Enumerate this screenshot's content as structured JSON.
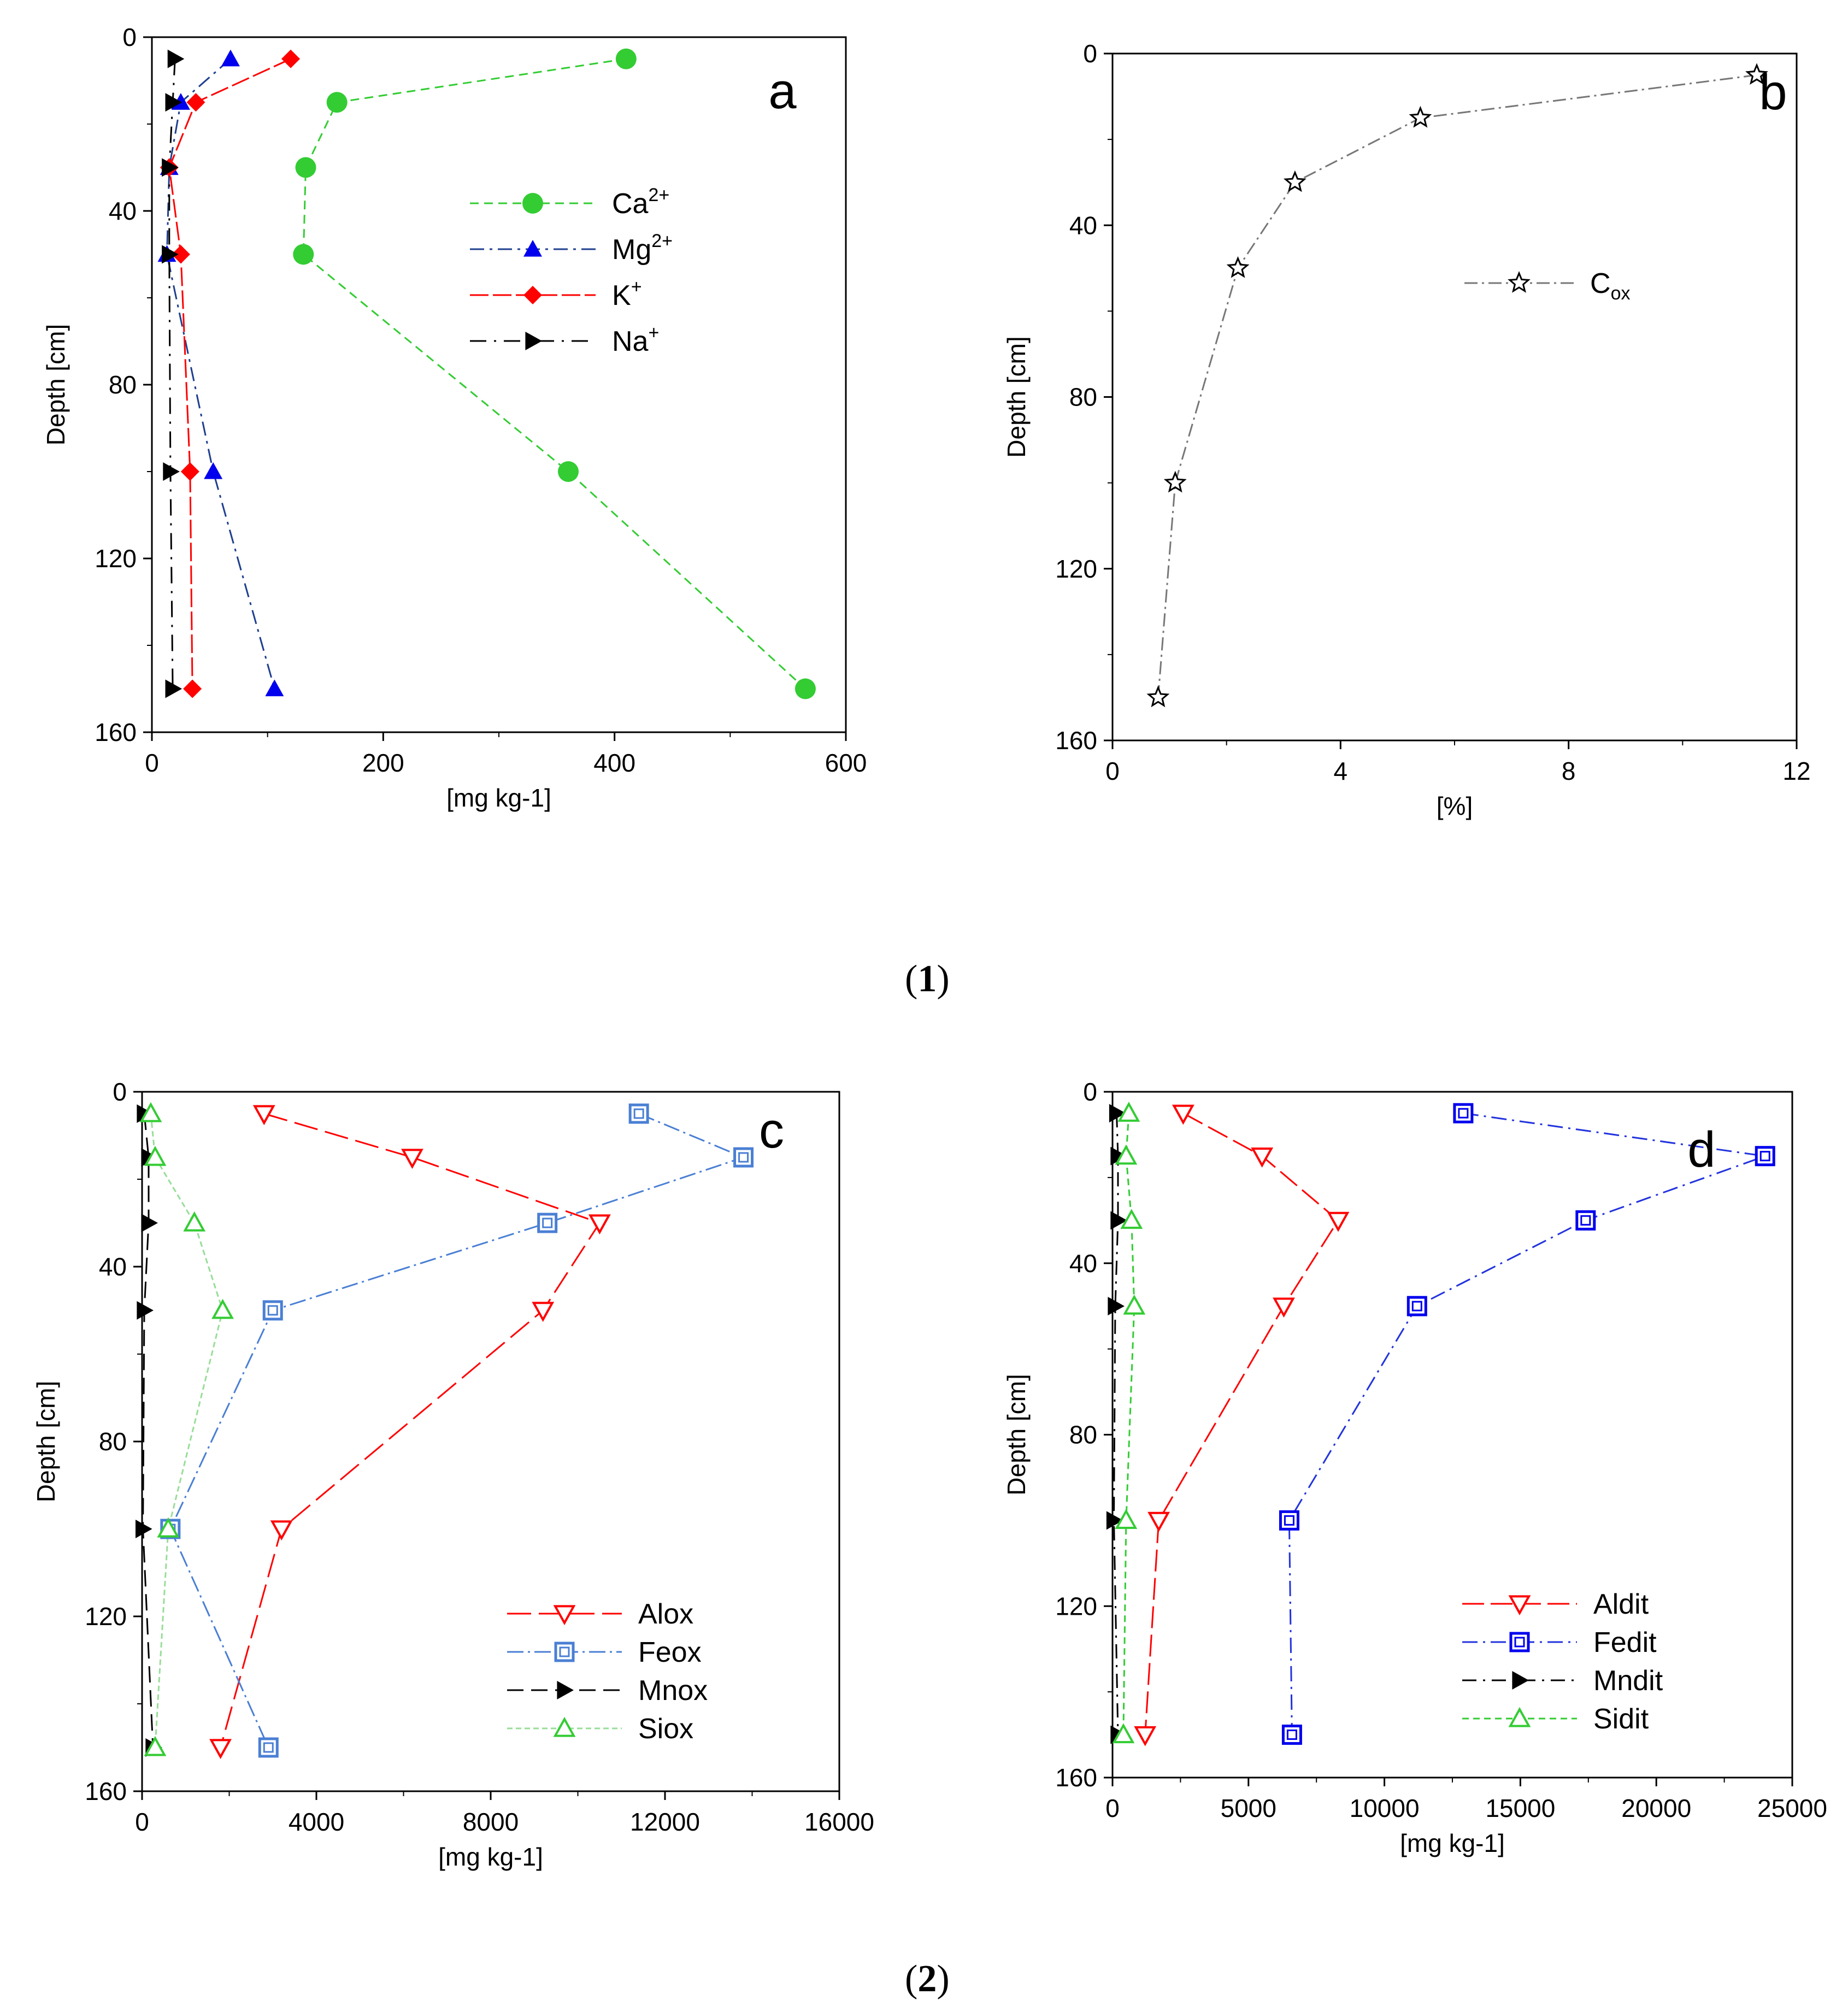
{
  "figure_labels": {
    "one": "1",
    "two": "2"
  },
  "chart_data": [
    {
      "type": "line",
      "panel": "a",
      "xlabel": "[mg kg-1]",
      "ylabel": "Depth [cm]",
      "xlim": [
        0,
        600
      ],
      "ylim": [
        0,
        160
      ],
      "y_inverted": true,
      "xticks": [
        0,
        200,
        400,
        600
      ],
      "yticks": [
        0,
        40,
        80,
        120,
        160
      ],
      "legend_position": "right-center",
      "series": [
        {
          "name": "Ca",
          "sup": "2+",
          "color": "#33cc33",
          "marker": "circle",
          "dash": "16,10",
          "x": [
            410,
            160,
            133,
            131,
            360,
            565
          ],
          "y": [
            5,
            15,
            30,
            50,
            100,
            150
          ]
        },
        {
          "name": "Mg",
          "sup": "2+",
          "color": "#0000ee",
          "line": "#1f3f8f",
          "marker": "triangle-up",
          "dash": "26,10,5,10",
          "x": [
            68,
            25,
            15,
            13,
            53,
            106
          ],
          "y": [
            5,
            15,
            30,
            50,
            100,
            150
          ]
        },
        {
          "name": "K",
          "sup": "+",
          "color": "#ff0000",
          "marker": "diamond",
          "dash": "34,8",
          "x": [
            120,
            38,
            15,
            25,
            33,
            35
          ],
          "y": [
            5,
            15,
            30,
            50,
            100,
            150
          ]
        },
        {
          "name": "Na",
          "sup": "+",
          "color": "#000000",
          "marker": "triangle-right",
          "dash": "30,14,4,14",
          "x": [
            20,
            18,
            15,
            15,
            16,
            18
          ],
          "y": [
            5,
            15,
            30,
            50,
            100,
            150
          ]
        }
      ]
    },
    {
      "type": "line",
      "panel": "b",
      "xlabel": "[%]",
      "ylabel": "Depth [cm]",
      "xlim": [
        0,
        12
      ],
      "ylim": [
        0,
        160
      ],
      "y_inverted": true,
      "xticks": [
        0,
        4,
        8,
        12
      ],
      "yticks": [
        0,
        40,
        80,
        120,
        160
      ],
      "legend_position": "right-center",
      "series": [
        {
          "name": "C",
          "sub": "ox",
          "color": "#000000",
          "line": "#777777",
          "marker": "star",
          "dash": "24,8,4,8",
          "x": [
            11.3,
            5.4,
            3.2,
            2.2,
            1.1,
            0.8
          ],
          "y": [
            5,
            15,
            30,
            50,
            100,
            150
          ]
        }
      ]
    },
    {
      "type": "line",
      "panel": "c",
      "xlabel": "[mg kg-1]",
      "ylabel": "Depth [cm]",
      "xlim": [
        0,
        16000
      ],
      "ylim": [
        0,
        160
      ],
      "y_inverted": true,
      "xticks": [
        0,
        4000,
        8000,
        12000,
        16000
      ],
      "yticks": [
        0,
        40,
        80,
        120,
        160
      ],
      "legend_position": "bottom-right",
      "series": [
        {
          "name": "Alox",
          "color": "#ff0000",
          "marker": "triangle-down-open",
          "dash": "44,14",
          "x": [
            2800,
            6200,
            10500,
            9200,
            3200,
            1800
          ],
          "y": [
            5,
            15,
            30,
            50,
            100,
            150
          ]
        },
        {
          "name": "Feox",
          "color": "#4a7fd4",
          "marker": "square-open",
          "dash": "30,8,4,8",
          "x": [
            11400,
            13800,
            9300,
            3000,
            650,
            2900
          ],
          "y": [
            5,
            15,
            30,
            50,
            100,
            150
          ]
        },
        {
          "name": "Mnox",
          "color": "#000000",
          "marker": "triangle-right",
          "dash": "30,14",
          "x": [
            50,
            150,
            150,
            50,
            20,
            250
          ],
          "y": [
            5,
            15,
            30,
            50,
            100,
            150
          ]
        },
        {
          "name": "Siox",
          "color": "#33cc33",
          "line": "#99dd99",
          "marker": "triangle-up-open",
          "dash": "10,6",
          "x": [
            200,
            300,
            1200,
            1850,
            600,
            300
          ],
          "y": [
            5,
            15,
            30,
            50,
            100,
            150
          ]
        }
      ]
    },
    {
      "type": "line",
      "panel": "d",
      "xlabel": "[mg kg-1]",
      "ylabel": "Depth [cm]",
      "xlim": [
        0,
        25000
      ],
      "ylim": [
        0,
        160
      ],
      "y_inverted": true,
      "xticks": [
        0,
        5000,
        10000,
        15000,
        20000,
        25000
      ],
      "yticks": [
        0,
        40,
        80,
        120,
        160
      ],
      "legend_position": "bottom-right",
      "series": [
        {
          "name": "Aldit",
          "color": "#ff0000",
          "marker": "triangle-down-open",
          "dash": "40,12",
          "x": [
            2600,
            5500,
            8300,
            6300,
            1700,
            1200
          ],
          "y": [
            5,
            15,
            30,
            50,
            100,
            150
          ]
        },
        {
          "name": "Fedit",
          "color": "#0000ee",
          "line": "#2233dd",
          "marker": "square-open",
          "dash": "28,10,4,10",
          "x": [
            12900,
            24000,
            17400,
            11200,
            6500,
            6600
          ],
          "y": [
            5,
            15,
            30,
            50,
            100,
            150
          ]
        },
        {
          "name": "Mndit",
          "color": "#000000",
          "marker": "triangle-right",
          "dash": "26,12,4,12",
          "x": [
            150,
            200,
            200,
            100,
            50,
            200
          ],
          "y": [
            5,
            15,
            30,
            50,
            100,
            150
          ]
        },
        {
          "name": "Sidit",
          "color": "#33cc33",
          "marker": "triangle-up-open",
          "dash": "12,8",
          "x": [
            600,
            500,
            700,
            800,
            500,
            400
          ],
          "y": [
            5,
            15,
            30,
            50,
            100,
            150
          ]
        }
      ]
    }
  ]
}
